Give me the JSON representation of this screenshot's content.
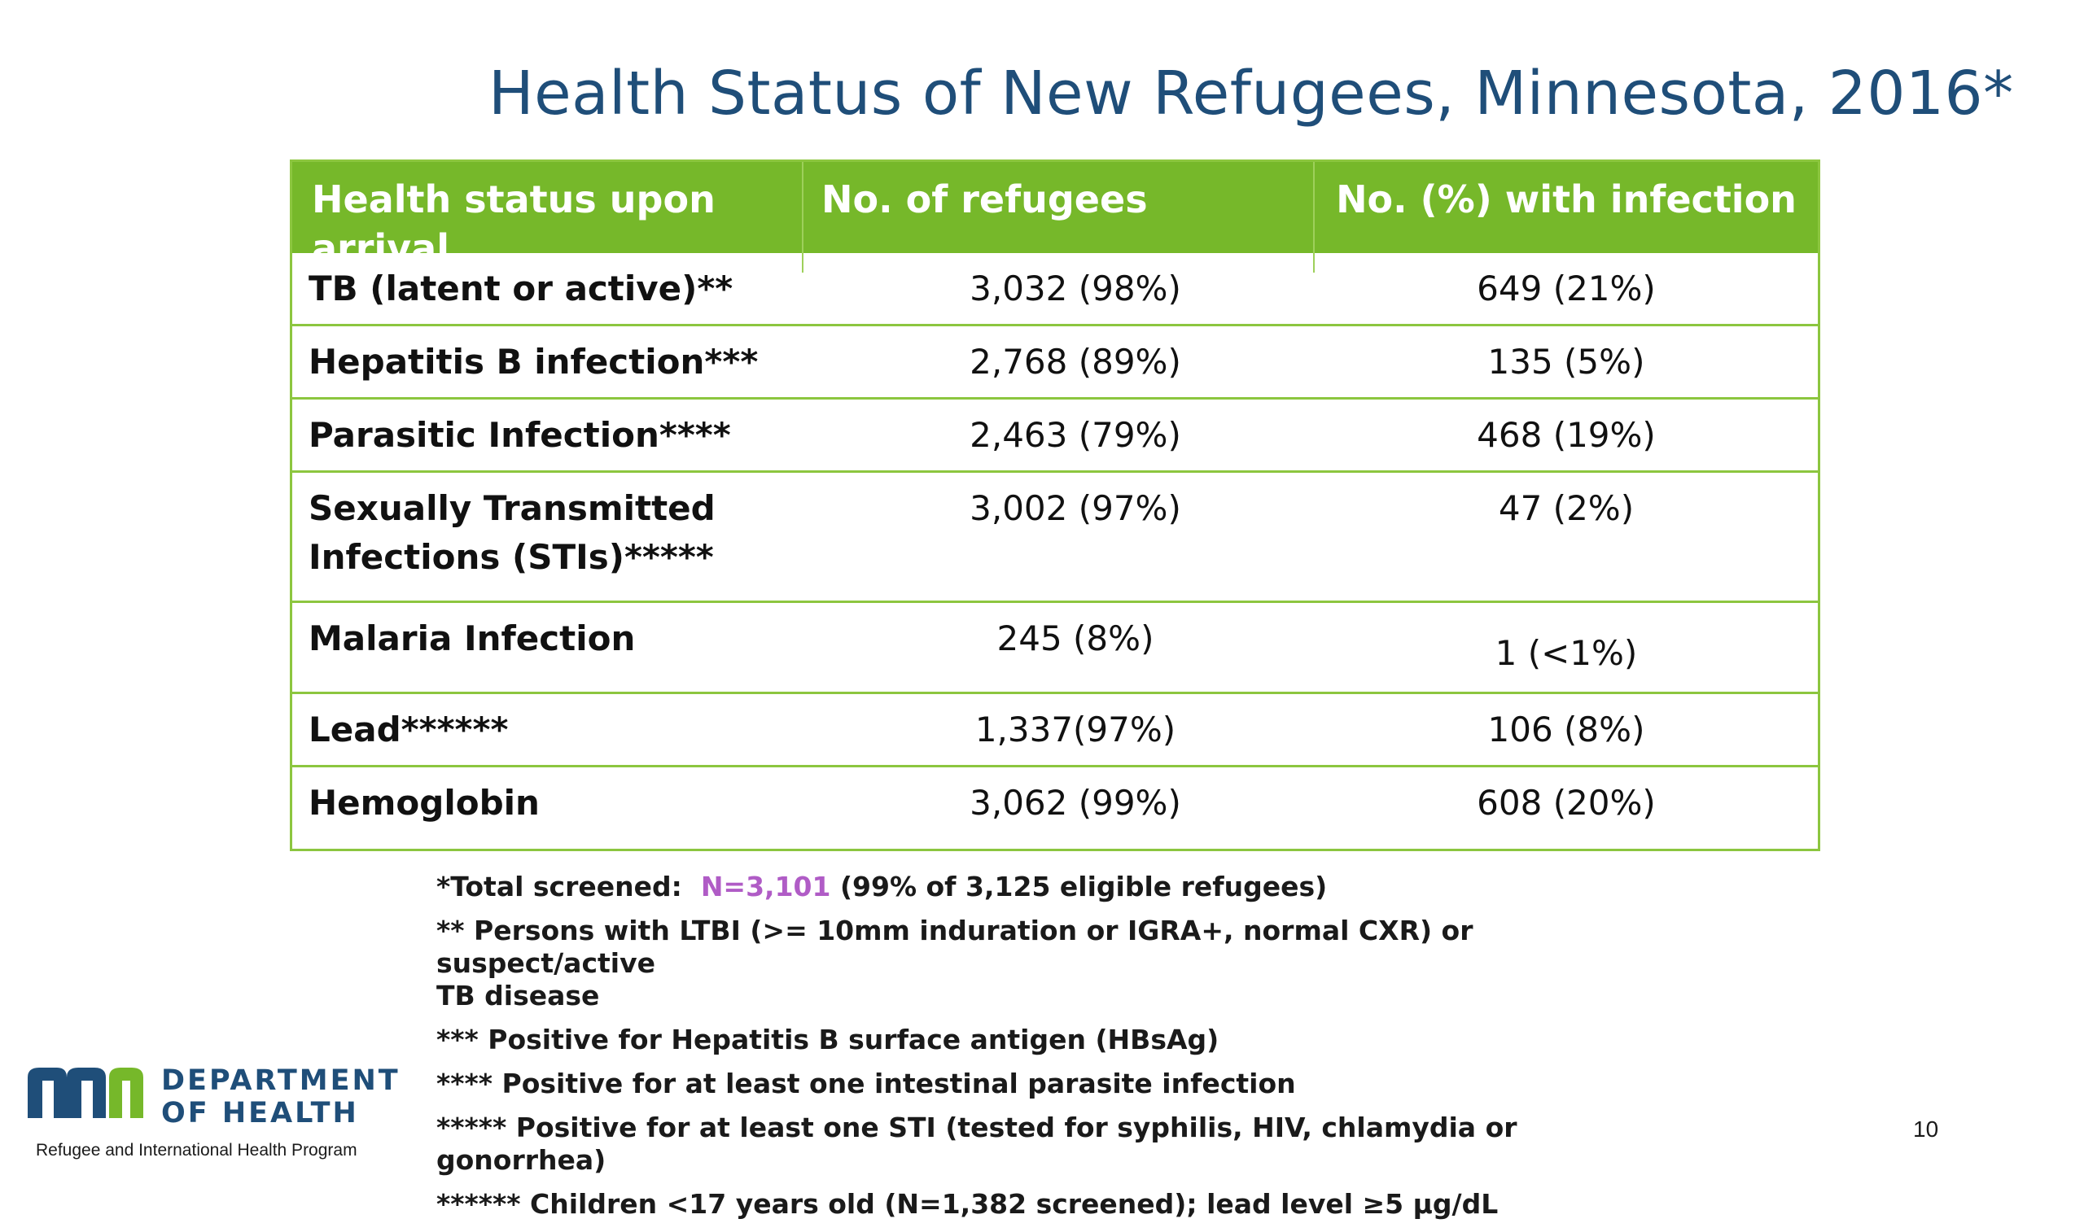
{
  "title": "Health Status of New Refugees, Minnesota, 2016*",
  "table": {
    "headers": [
      "Health status upon arrival",
      "No. of refugees",
      "No. (%) with infection"
    ],
    "rows": [
      {
        "status": "TB (latent or active)**",
        "refugees": "3,032 (98%)",
        "infection": "649 (21%)"
      },
      {
        "status": "Hepatitis B infection***",
        "refugees": "2,768 (89%)",
        "infection": "135 (5%)"
      },
      {
        "status": "Parasitic Infection****",
        "refugees": "2,463 (79%)",
        "infection": "468 (19%)"
      },
      {
        "status_line1": "Sexually Transmitted",
        "status_line2": "Infections (STIs)*****",
        "refugees": "3,002 (97%)",
        "infection": "47 (2%)"
      },
      {
        "status": "Malaria Infection",
        "refugees": "245 (8%)",
        "infection": "1 (<1%)"
      },
      {
        "status": "Lead******",
        "refugees": "1,337(97%)",
        "infection": "106 (8%)"
      },
      {
        "status": "Hemoglobin",
        "refugees": "3,062 (99%)",
        "infection": "608 (20%)"
      }
    ]
  },
  "footnotes": {
    "total_prefix": "*Total screened:  ",
    "total_highlight": "N=3,101",
    "total_suffix": " (99% of 3,125 eligible refugees)",
    "tb_line1": "** Persons with LTBI (>= 10mm induration or IGRA+, normal CXR) or suspect/active",
    "tb_line2": "TB disease",
    "hepb": "*** Positive for Hepatitis B surface antigen (HBsAg)",
    "parasite": "**** Positive for at least one intestinal parasite infection",
    "sti": "***** Positive for at least one STI (tested for syphilis, HIV, chlamydia or gonorrhea)",
    "lead": "****** Children <17 years old (N=1,382 screened); lead level ≥5 µg/dL"
  },
  "logo": {
    "line1": "DEPARTMENT",
    "line2": "OF HEALTH",
    "subtitle": "Refugee and International Health Program"
  },
  "page_number": "10",
  "colors": {
    "title": "#1f4e79",
    "header_bg": "#76b82a",
    "border": "#8cc63f",
    "highlight": "#b05cc6",
    "logo_blue": "#1f4e79",
    "logo_green": "#76b82a"
  }
}
